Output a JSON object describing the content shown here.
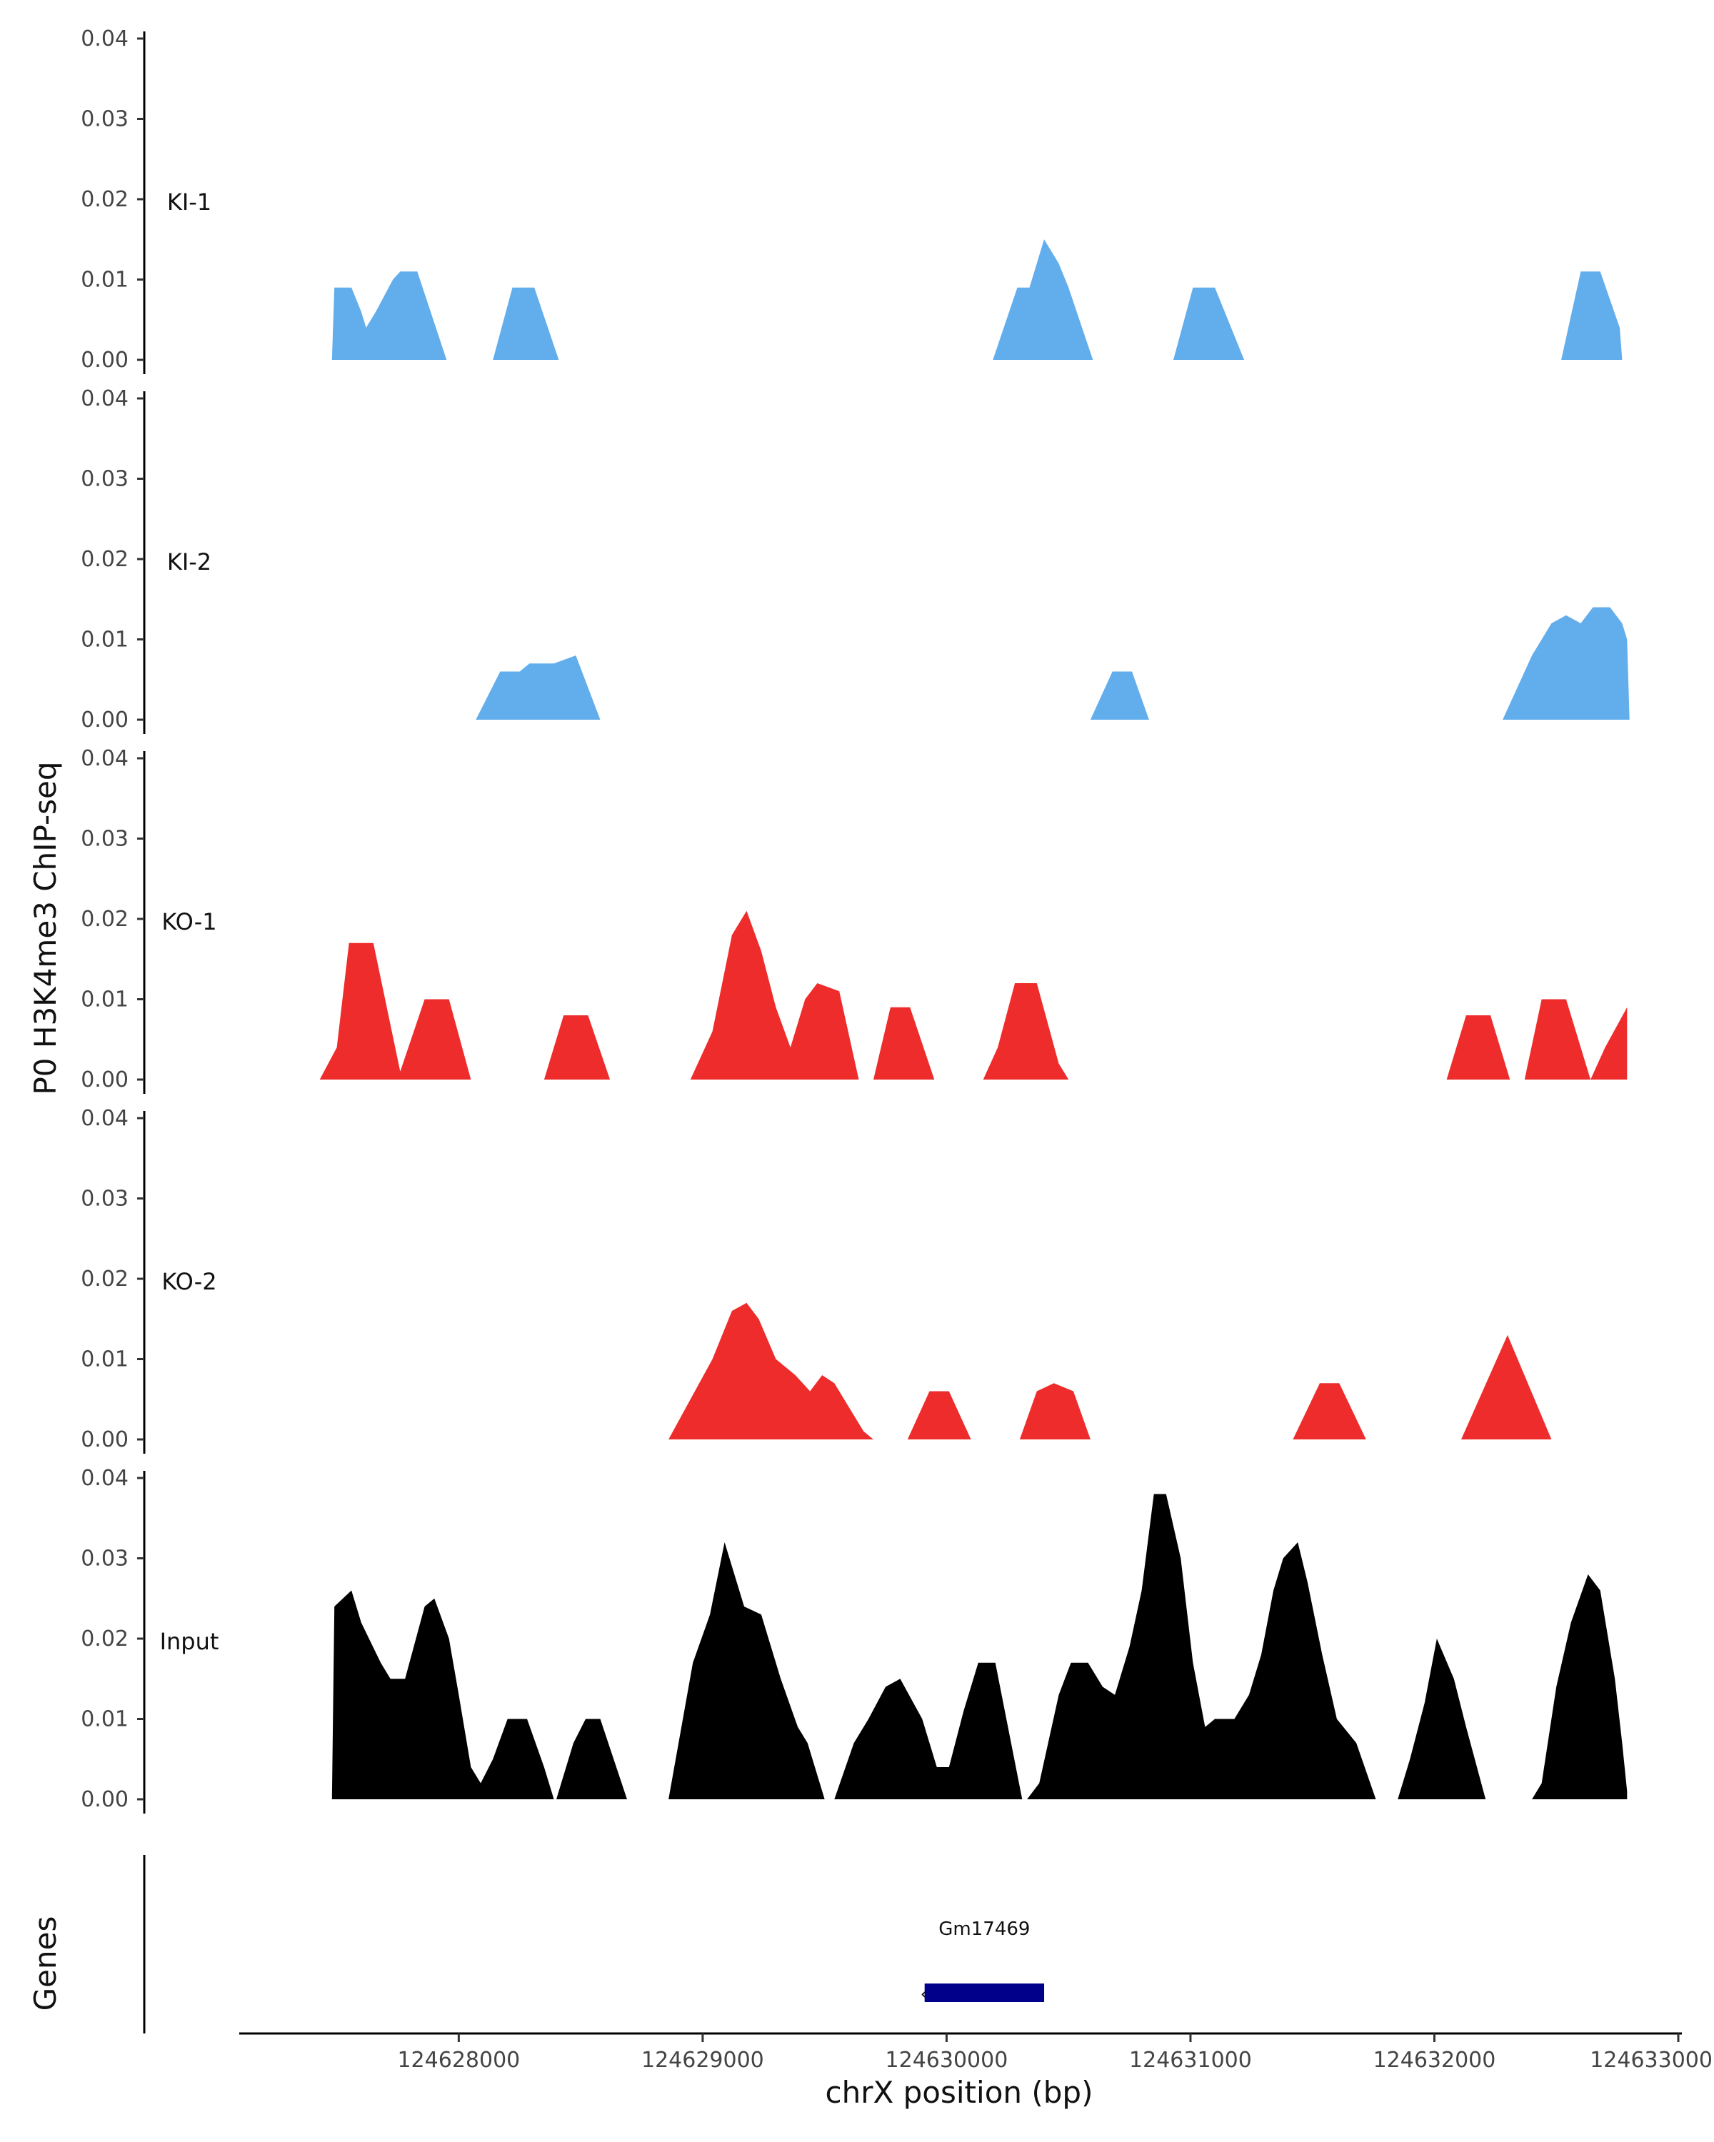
{
  "chart_data": {
    "type": "area",
    "ylabel": "P0 H3K4me3 ChIP-seq",
    "xlabel": "chrX position (bp)",
    "genes_label": "Genes",
    "ylim": [
      0,
      0.04
    ],
    "yticks": [
      "0.00",
      "0.01",
      "0.02",
      "0.03",
      "0.04"
    ],
    "xlim": [
      124627100,
      124633000
    ],
    "xticks": [
      124628000,
      124629000,
      124630000,
      124631000,
      124632000,
      124633000
    ],
    "xtick_labels": [
      "124628000",
      "124629000",
      "124630000",
      "124631000",
      "124632000",
      "124633000"
    ],
    "grid": false,
    "colors": {
      "KI": "#62adec",
      "KO": "#ee2c2c",
      "Input": "#000000",
      "gene": "#00008b"
    },
    "tracks": [
      {
        "name": "KI-1",
        "color": "#62adec",
        "peaks": [
          [
            [
              124627480,
              0
            ],
            [
              124627490,
              0.009
            ],
            [
              124627560,
              0.009
            ],
            [
              124627600,
              0.006
            ],
            [
              124627620,
              0.004
            ],
            [
              124627660,
              0.006
            ],
            [
              124627730,
              0.01
            ],
            [
              124627760,
              0.011
            ],
            [
              124627830,
              0.011
            ],
            [
              124627950,
              0
            ]
          ],
          [
            [
              124628140,
              0
            ],
            [
              124628220,
              0.009
            ],
            [
              124628310,
              0.009
            ],
            [
              124628410,
              0
            ]
          ],
          [
            [
              124630190,
              0
            ],
            [
              124630290,
              0.009
            ],
            [
              124630340,
              0.009
            ],
            [
              124630400,
              0.015
            ],
            [
              124630460,
              0.012
            ],
            [
              124630500,
              0.009
            ],
            [
              124630600,
              0
            ]
          ],
          [
            [
              124630930,
              0
            ],
            [
              124631010,
              0.009
            ],
            [
              124631100,
              0.009
            ],
            [
              124631220,
              0
            ]
          ],
          [
            [
              124632520,
              0
            ],
            [
              124632600,
              0.011
            ],
            [
              124632680,
              0.011
            ],
            [
              124632760,
              0.004
            ],
            [
              124632770,
              0
            ]
          ]
        ]
      },
      {
        "name": "KI-2",
        "color": "#62adec",
        "peaks": [
          [
            [
              124628070,
              0
            ],
            [
              124628170,
              0.006
            ],
            [
              124628250,
              0.006
            ],
            [
              124628290,
              0.007
            ],
            [
              124628390,
              0.007
            ],
            [
              124628480,
              0.008
            ],
            [
              124628580,
              0
            ]
          ],
          [
            [
              124630590,
              0
            ],
            [
              124630680,
              0.006
            ],
            [
              124630760,
              0.006
            ],
            [
              124630830,
              0
            ]
          ],
          [
            [
              124632280,
              0
            ],
            [
              124632400,
              0.008
            ],
            [
              124632480,
              0.012
            ],
            [
              124632540,
              0.013
            ],
            [
              124632600,
              0.012
            ],
            [
              124632650,
              0.014
            ],
            [
              124632720,
              0.014
            ],
            [
              124632770,
              0.012
            ],
            [
              124632790,
              0.01
            ],
            [
              124632800,
              0
            ]
          ]
        ]
      },
      {
        "name": "KO-1",
        "color": "#ee2c2c",
        "peaks": [
          [
            [
              124627430,
              0
            ],
            [
              124627500,
              0.004
            ],
            [
              124627550,
              0.017
            ],
            [
              124627650,
              0.017
            ],
            [
              124627760,
              0.001
            ],
            [
              124627860,
              0.01
            ],
            [
              124627960,
              0.01
            ],
            [
              124628050,
              0
            ]
          ],
          [
            [
              124628350,
              0
            ],
            [
              124628430,
              0.008
            ],
            [
              124628530,
              0.008
            ],
            [
              124628620,
              0
            ]
          ],
          [
            [
              124628950,
              0
            ],
            [
              124629040,
              0.006
            ],
            [
              124629120,
              0.018
            ],
            [
              124629180,
              0.021
            ],
            [
              124629240,
              0.016
            ],
            [
              124629300,
              0.009
            ],
            [
              124629360,
              0.004
            ],
            [
              124629420,
              0.01
            ],
            [
              124629470,
              0.012
            ],
            [
              124629560,
              0.011
            ],
            [
              124629640,
              0
            ]
          ],
          [
            [
              124629700,
              0
            ],
            [
              124629770,
              0.009
            ],
            [
              124629850,
              0.009
            ],
            [
              124629950,
              0
            ]
          ],
          [
            [
              124630150,
              0
            ],
            [
              124630210,
              0.004
            ],
            [
              124630280,
              0.012
            ],
            [
              124630370,
              0.012
            ],
            [
              124630460,
              0.002
            ],
            [
              124630500,
              0
            ]
          ],
          [
            [
              124632050,
              0
            ],
            [
              124632130,
              0.008
            ],
            [
              124632230,
              0.008
            ],
            [
              124632310,
              0
            ],
            [
              124632370,
              0
            ],
            [
              124632440,
              0.01
            ],
            [
              124632540,
              0.01
            ],
            [
              124632640,
              0
            ],
            [
              124632700,
              0.004
            ],
            [
              124632790,
              0.009
            ],
            [
              124632790,
              0
            ]
          ]
        ]
      },
      {
        "name": "KO-2",
        "color": "#ee2c2c",
        "peaks": [
          [
            [
              124628860,
              0
            ],
            [
              124628950,
              0.005
            ],
            [
              124629040,
              0.01
            ],
            [
              124629120,
              0.016
            ],
            [
              124629180,
              0.017
            ],
            [
              124629230,
              0.015
            ],
            [
              124629300,
              0.01
            ],
            [
              124629380,
              0.008
            ],
            [
              124629440,
              0.006
            ],
            [
              124629490,
              0.008
            ],
            [
              124629540,
              0.007
            ],
            [
              124629600,
              0.004
            ],
            [
              124629660,
              0.001
            ],
            [
              124629700,
              0
            ]
          ],
          [
            [
              124629840,
              0
            ],
            [
              124629930,
              0.006
            ],
            [
              124630010,
              0.006
            ],
            [
              124630100,
              0
            ]
          ],
          [
            [
              124630300,
              0
            ],
            [
              124630370,
              0.006
            ],
            [
              124630440,
              0.007
            ],
            [
              124630520,
              0.006
            ],
            [
              124630590,
              0
            ]
          ],
          [
            [
              124631420,
              0
            ],
            [
              124631530,
              0.007
            ],
            [
              124631610,
              0.007
            ],
            [
              124631720,
              0
            ]
          ],
          [
            [
              124632110,
              0
            ],
            [
              124632300,
              0.013
            ],
            [
              124632480,
              0
            ]
          ]
        ]
      },
      {
        "name": "Input",
        "color": "#000000",
        "peaks": [
          [
            [
              124627480,
              0
            ],
            [
              124627490,
              0.024
            ],
            [
              124627560,
              0.026
            ],
            [
              124627600,
              0.022
            ],
            [
              124627680,
              0.017
            ],
            [
              124627720,
              0.015
            ],
            [
              124627780,
              0.015
            ],
            [
              124627860,
              0.024
            ],
            [
              124627900,
              0.025
            ],
            [
              124627960,
              0.02
            ],
            [
              124628000,
              0.013
            ],
            [
              124628050,
              0.004
            ],
            [
              124628090,
              0.002
            ],
            [
              124628140,
              0.005
            ],
            [
              124628200,
              0.01
            ],
            [
              124628280,
              0.01
            ],
            [
              124628350,
              0.004
            ],
            [
              124628390,
              0
            ]
          ],
          [
            [
              124628400,
              0
            ],
            [
              124628470,
              0.007
            ],
            [
              124628520,
              0.01
            ],
            [
              124628580,
              0.01
            ],
            [
              124628690,
              0
            ]
          ],
          [
            [
              124628860,
              0
            ],
            [
              124628960,
              0.017
            ],
            [
              124629030,
              0.023
            ],
            [
              124629090,
              0.032
            ],
            [
              124629170,
              0.024
            ],
            [
              124629240,
              0.023
            ],
            [
              124629320,
              0.015
            ],
            [
              124629390,
              0.009
            ],
            [
              124629430,
              0.007
            ],
            [
              124629500,
              0
            ]
          ],
          [
            [
              124629540,
              0
            ],
            [
              124629620,
              0.007
            ],
            [
              124629680,
              0.01
            ],
            [
              124629750,
              0.014
            ],
            [
              124629810,
              0.015
            ],
            [
              124629900,
              0.01
            ],
            [
              124629960,
              0.004
            ],
            [
              124630010,
              0.004
            ],
            [
              124630070,
              0.011
            ],
            [
              124630130,
              0.017
            ],
            [
              124630200,
              0.017
            ],
            [
              124630310,
              0
            ]
          ],
          [
            [
              124630330,
              0
            ],
            [
              124630380,
              0.002
            ],
            [
              124630460,
              0.013
            ],
            [
              124630510,
              0.017
            ],
            [
              124630580,
              0.017
            ],
            [
              124630640,
              0.014
            ],
            [
              124630690,
              0.013
            ],
            [
              124630750,
              0.019
            ],
            [
              124630800,
              0.026
            ],
            [
              124630850,
              0.038
            ],
            [
              124630900,
              0.038
            ],
            [
              124630960,
              0.03
            ],
            [
              124631010,
              0.017
            ],
            [
              124631060,
              0.009
            ],
            [
              124631100,
              0.01
            ],
            [
              124631180,
              0.01
            ],
            [
              124631240,
              0.013
            ],
            [
              124631290,
              0.018
            ],
            [
              124631340,
              0.026
            ],
            [
              124631380,
              0.03
            ],
            [
              124631440,
              0.032
            ],
            [
              124631480,
              0.027
            ],
            [
              124631540,
              0.018
            ],
            [
              124631600,
              0.01
            ],
            [
              124631680,
              0.007
            ],
            [
              124631760,
              0
            ]
          ],
          [
            [
              124631850,
              0
            ],
            [
              124631900,
              0.005
            ],
            [
              124631960,
              0.012
            ],
            [
              124632010,
              0.02
            ],
            [
              124632080,
              0.015
            ],
            [
              124632130,
              0.009
            ],
            [
              124632210,
              0
            ]
          ],
          [
            [
              124632400,
              0
            ],
            [
              124632440,
              0.002
            ],
            [
              124632500,
              0.014
            ],
            [
              124632560,
              0.022
            ],
            [
              124632630,
              0.028
            ],
            [
              124632680,
              0.026
            ],
            [
              124632740,
              0.015
            ],
            [
              124632770,
              0.007
            ],
            [
              124632790,
              0.001
            ],
            [
              124632790,
              0
            ]
          ]
        ]
      }
    ],
    "gene": {
      "name": "Gm17469",
      "start": 124629910,
      "end": 124630400
    }
  }
}
